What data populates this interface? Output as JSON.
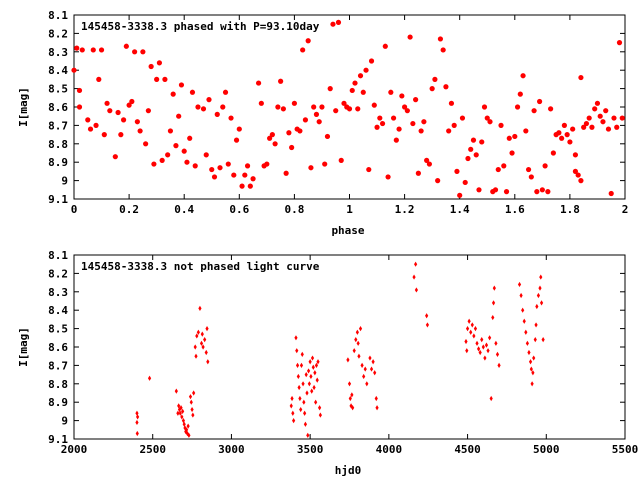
{
  "chart_data": [
    {
      "type": "scatter",
      "title": "145458-3338.3 phased with P=93.10day",
      "xlabel": "phase",
      "ylabel": "I[mag]",
      "xlim": [
        0,
        2
      ],
      "ylim": [
        9.1,
        8.1
      ],
      "y_inverted": true,
      "xticks": [
        "0",
        "0.2",
        "0.4",
        "0.6",
        "0.8",
        "1",
        "1.2",
        "1.4",
        "1.6",
        "1.8",
        "2"
      ],
      "yticks": [
        "8.1",
        "8.2",
        "8.3",
        "8.4",
        "8.5",
        "8.6",
        "8.7",
        "8.8",
        "8.9",
        "9",
        "9.1"
      ],
      "marker_color": "#ff0000",
      "marker": "filled-circle",
      "grid": false,
      "points": [
        [
          0.0,
          8.4
        ],
        [
          0.01,
          8.28
        ],
        [
          0.02,
          8.51
        ],
        [
          0.02,
          8.6
        ],
        [
          0.03,
          8.29
        ],
        [
          0.05,
          8.67
        ],
        [
          0.06,
          8.72
        ],
        [
          0.07,
          8.29
        ],
        [
          0.08,
          8.7
        ],
        [
          0.09,
          8.45
        ],
        [
          0.1,
          8.29
        ],
        [
          0.11,
          8.75
        ],
        [
          0.12,
          8.58
        ],
        [
          0.13,
          8.62
        ],
        [
          0.15,
          8.87
        ],
        [
          0.16,
          8.63
        ],
        [
          0.17,
          8.75
        ],
        [
          0.18,
          8.67
        ],
        [
          0.19,
          8.27
        ],
        [
          0.2,
          8.59
        ],
        [
          0.21,
          8.57
        ],
        [
          0.22,
          8.3
        ],
        [
          0.23,
          8.68
        ],
        [
          0.24,
          8.73
        ],
        [
          0.25,
          8.3
        ],
        [
          0.26,
          8.8
        ],
        [
          0.27,
          8.62
        ],
        [
          0.28,
          8.38
        ],
        [
          0.29,
          8.91
        ],
        [
          0.3,
          8.45
        ],
        [
          0.31,
          8.36
        ],
        [
          0.32,
          8.89
        ],
        [
          0.33,
          8.45
        ],
        [
          0.34,
          8.86
        ],
        [
          0.35,
          8.73
        ],
        [
          0.36,
          8.53
        ],
        [
          0.37,
          8.81
        ],
        [
          0.38,
          8.65
        ],
        [
          0.39,
          8.48
        ],
        [
          0.4,
          8.84
        ],
        [
          0.41,
          8.9
        ],
        [
          0.42,
          8.77
        ],
        [
          0.43,
          8.52
        ],
        [
          0.44,
          8.92
        ],
        [
          0.45,
          8.6
        ],
        [
          0.47,
          8.61
        ],
        [
          0.48,
          8.86
        ],
        [
          0.49,
          8.56
        ],
        [
          0.5,
          8.94
        ],
        [
          0.51,
          8.98
        ],
        [
          0.52,
          8.64
        ],
        [
          0.53,
          8.93
        ],
        [
          0.54,
          8.6
        ],
        [
          0.55,
          8.52
        ],
        [
          0.56,
          8.91
        ],
        [
          0.57,
          8.66
        ],
        [
          0.58,
          8.97
        ],
        [
          0.59,
          8.78
        ],
        [
          0.6,
          8.72
        ],
        [
          0.61,
          9.03
        ],
        [
          0.62,
          8.97
        ],
        [
          0.63,
          8.92
        ],
        [
          0.64,
          9.03
        ],
        [
          0.65,
          8.99
        ],
        [
          0.67,
          8.47
        ],
        [
          0.68,
          8.58
        ],
        [
          0.69,
          8.92
        ],
        [
          0.7,
          8.91
        ],
        [
          0.71,
          8.77
        ],
        [
          0.72,
          8.75
        ],
        [
          0.73,
          8.8
        ],
        [
          0.74,
          8.6
        ],
        [
          0.75,
          8.46
        ],
        [
          0.76,
          8.61
        ],
        [
          0.77,
          8.96
        ],
        [
          0.78,
          8.74
        ],
        [
          0.79,
          8.82
        ],
        [
          0.8,
          8.58
        ],
        [
          0.81,
          8.72
        ],
        [
          0.82,
          8.73
        ],
        [
          0.83,
          8.29
        ],
        [
          0.84,
          8.67
        ],
        [
          0.85,
          8.24
        ],
        [
          0.86,
          8.93
        ],
        [
          0.87,
          8.6
        ],
        [
          0.88,
          8.64
        ],
        [
          0.89,
          8.68
        ],
        [
          0.9,
          8.6
        ],
        [
          0.91,
          8.91
        ],
        [
          0.92,
          8.76
        ],
        [
          0.93,
          8.5
        ],
        [
          0.94,
          8.15
        ],
        [
          0.95,
          8.62
        ],
        [
          0.96,
          8.14
        ],
        [
          0.97,
          8.89
        ],
        [
          0.98,
          8.58
        ],
        [
          0.99,
          8.6
        ],
        [
          1.0,
          8.61
        ],
        [
          1.01,
          8.51
        ],
        [
          1.02,
          8.47
        ],
        [
          1.03,
          8.61
        ],
        [
          1.04,
          8.43
        ],
        [
          1.05,
          8.52
        ],
        [
          1.06,
          8.4
        ],
        [
          1.07,
          8.94
        ],
        [
          1.08,
          8.35
        ],
        [
          1.09,
          8.59
        ],
        [
          1.1,
          8.71
        ],
        [
          1.11,
          8.66
        ],
        [
          1.12,
          8.69
        ],
        [
          1.13,
          8.27
        ],
        [
          1.14,
          8.98
        ],
        [
          1.15,
          8.52
        ],
        [
          1.16,
          8.66
        ],
        [
          1.17,
          8.78
        ],
        [
          1.18,
          8.72
        ],
        [
          1.19,
          8.54
        ],
        [
          1.2,
          8.6
        ],
        [
          1.21,
          8.62
        ],
        [
          1.22,
          8.22
        ],
        [
          1.23,
          8.69
        ],
        [
          1.24,
          8.56
        ],
        [
          1.25,
          8.96
        ],
        [
          1.26,
          8.73
        ],
        [
          1.27,
          8.68
        ],
        [
          1.28,
          8.89
        ],
        [
          1.29,
          8.91
        ],
        [
          1.3,
          8.5
        ],
        [
          1.31,
          8.45
        ],
        [
          1.32,
          9.0
        ],
        [
          1.33,
          8.23
        ],
        [
          1.34,
          8.29
        ],
        [
          1.35,
          8.49
        ],
        [
          1.36,
          8.73
        ],
        [
          1.37,
          8.58
        ],
        [
          1.38,
          8.7
        ],
        [
          1.39,
          8.95
        ],
        [
          1.4,
          9.08
        ],
        [
          1.41,
          8.66
        ],
        [
          1.42,
          9.01
        ],
        [
          1.43,
          8.88
        ],
        [
          1.44,
          8.83
        ],
        [
          1.45,
          8.78
        ],
        [
          1.46,
          8.86
        ],
        [
          1.47,
          9.05
        ],
        [
          1.48,
          8.79
        ],
        [
          1.49,
          8.6
        ],
        [
          1.5,
          8.66
        ],
        [
          1.51,
          8.68
        ],
        [
          1.52,
          9.06
        ],
        [
          1.53,
          9.05
        ],
        [
          1.54,
          8.94
        ],
        [
          1.55,
          8.7
        ],
        [
          1.56,
          8.92
        ],
        [
          1.57,
          9.06
        ],
        [
          1.58,
          8.77
        ],
        [
          1.59,
          8.85
        ],
        [
          1.6,
          8.76
        ],
        [
          1.61,
          8.6
        ],
        [
          1.62,
          8.53
        ],
        [
          1.63,
          8.43
        ],
        [
          1.64,
          8.73
        ],
        [
          1.65,
          8.94
        ],
        [
          1.66,
          8.98
        ],
        [
          1.67,
          8.62
        ],
        [
          1.68,
          9.06
        ],
        [
          1.69,
          8.57
        ],
        [
          1.7,
          9.05
        ],
        [
          1.71,
          8.92
        ],
        [
          1.72,
          9.06
        ],
        [
          1.73,
          8.61
        ],
        [
          1.74,
          8.85
        ],
        [
          1.75,
          8.75
        ],
        [
          1.76,
          8.74
        ],
        [
          1.77,
          8.77
        ],
        [
          1.78,
          8.7
        ],
        [
          1.79,
          8.75
        ],
        [
          1.8,
          8.79
        ],
        [
          1.81,
          8.72
        ],
        [
          1.82,
          8.95
        ],
        [
          1.82,
          8.86
        ],
        [
          1.83,
          8.97
        ],
        [
          1.84,
          8.44
        ],
        [
          1.84,
          9.0
        ],
        [
          1.85,
          8.71
        ],
        [
          1.86,
          8.69
        ],
        [
          1.87,
          8.66
        ],
        [
          1.88,
          8.71
        ],
        [
          1.89,
          8.61
        ],
        [
          1.9,
          8.58
        ],
        [
          1.91,
          8.65
        ],
        [
          1.92,
          8.68
        ],
        [
          1.93,
          8.62
        ],
        [
          1.94,
          8.72
        ],
        [
          1.95,
          9.07
        ],
        [
          1.96,
          8.66
        ],
        [
          1.97,
          8.71
        ],
        [
          1.98,
          8.25
        ],
        [
          1.99,
          8.66
        ]
      ]
    },
    {
      "type": "scatter",
      "title": "145458-3338.3 not phased light curve",
      "xlabel": "hjd0",
      "ylabel": "I[mag]",
      "xlim": [
        2000,
        5500
      ],
      "ylim": [
        9.1,
        8.1
      ],
      "y_inverted": true,
      "xticks": [
        "2000",
        "2500",
        "3000",
        "3500",
        "4000",
        "4500",
        "5000",
        "5500"
      ],
      "yticks": [
        "8.1",
        "8.2",
        "8.3",
        "8.4",
        "8.5",
        "8.6",
        "8.7",
        "8.8",
        "8.9",
        "9",
        "9.1"
      ],
      "marker_color": "#ff0000",
      "marker": "filled-diamond",
      "grid": false,
      "points": [
        [
          2400,
          8.96
        ],
        [
          2400,
          9.01
        ],
        [
          2402,
          9.07
        ],
        [
          2404,
          8.98
        ],
        [
          2480,
          8.77
        ],
        [
          2650,
          8.84
        ],
        [
          2660,
          8.96
        ],
        [
          2665,
          8.92
        ],
        [
          2670,
          8.94
        ],
        [
          2675,
          8.96
        ],
        [
          2680,
          8.93
        ],
        [
          2685,
          8.98
        ],
        [
          2690,
          8.95
        ],
        [
          2695,
          9.0
        ],
        [
          2700,
          9.02
        ],
        [
          2705,
          9.04
        ],
        [
          2710,
          9.06
        ],
        [
          2715,
          9.05
        ],
        [
          2720,
          9.07
        ],
        [
          2725,
          9.03
        ],
        [
          2730,
          9.08
        ],
        [
          2740,
          8.87
        ],
        [
          2745,
          8.9
        ],
        [
          2750,
          8.94
        ],
        [
          2755,
          8.97
        ],
        [
          2760,
          8.85
        ],
        [
          2770,
          8.6
        ],
        [
          2775,
          8.65
        ],
        [
          2780,
          8.54
        ],
        [
          2790,
          8.52
        ],
        [
          2800,
          8.39
        ],
        [
          2810,
          8.58
        ],
        [
          2815,
          8.53
        ],
        [
          2820,
          8.6
        ],
        [
          2830,
          8.56
        ],
        [
          2840,
          8.63
        ],
        [
          2845,
          8.5
        ],
        [
          2850,
          8.68
        ],
        [
          3380,
          8.92
        ],
        [
          3385,
          8.88
        ],
        [
          3390,
          8.96
        ],
        [
          3395,
          9.0
        ],
        [
          3410,
          8.55
        ],
        [
          3415,
          8.62
        ],
        [
          3420,
          8.7
        ],
        [
          3425,
          8.76
        ],
        [
          3430,
          8.82
        ],
        [
          3435,
          8.88
        ],
        [
          3440,
          8.94
        ],
        [
          3445,
          8.7
        ],
        [
          3450,
          8.64
        ],
        [
          3455,
          8.8
        ],
        [
          3460,
          8.9
        ],
        [
          3465,
          8.96
        ],
        [
          3470,
          9.02
        ],
        [
          3475,
          8.75
        ],
        [
          3480,
          8.85
        ],
        [
          3485,
          9.08
        ],
        [
          3490,
          8.73
        ],
        [
          3495,
          8.8
        ],
        [
          3500,
          8.68
        ],
        [
          3505,
          8.76
        ],
        [
          3510,
          8.84
        ],
        [
          3515,
          8.66
        ],
        [
          3520,
          8.71
        ],
        [
          3525,
          8.82
        ],
        [
          3530,
          8.74
        ],
        [
          3535,
          8.9
        ],
        [
          3540,
          8.7
        ],
        [
          3545,
          8.78
        ],
        [
          3550,
          8.68
        ],
        [
          3560,
          8.93
        ],
        [
          3565,
          8.97
        ],
        [
          3740,
          8.67
        ],
        [
          3750,
          8.8
        ],
        [
          3755,
          8.88
        ],
        [
          3760,
          8.92
        ],
        [
          3765,
          8.86
        ],
        [
          3770,
          8.93
        ],
        [
          3780,
          8.62
        ],
        [
          3790,
          8.56
        ],
        [
          3800,
          8.52
        ],
        [
          3805,
          8.58
        ],
        [
          3810,
          8.65
        ],
        [
          3820,
          8.5
        ],
        [
          3830,
          8.7
        ],
        [
          3840,
          8.76
        ],
        [
          3850,
          8.72
        ],
        [
          3860,
          8.8
        ],
        [
          3880,
          8.66
        ],
        [
          3890,
          8.72
        ],
        [
          3900,
          8.68
        ],
        [
          3910,
          8.74
        ],
        [
          3920,
          8.88
        ],
        [
          3925,
          8.93
        ],
        [
          4160,
          8.22
        ],
        [
          4170,
          8.15
        ],
        [
          4175,
          8.29
        ],
        [
          4240,
          8.43
        ],
        [
          4245,
          8.48
        ],
        [
          4490,
          8.57
        ],
        [
          4495,
          8.62
        ],
        [
          4500,
          8.5
        ],
        [
          4510,
          8.46
        ],
        [
          4520,
          8.52
        ],
        [
          4530,
          8.48
        ],
        [
          4540,
          8.54
        ],
        [
          4550,
          8.5
        ],
        [
          4560,
          8.58
        ],
        [
          4570,
          8.61
        ],
        [
          4580,
          8.63
        ],
        [
          4590,
          8.56
        ],
        [
          4600,
          8.6
        ],
        [
          4610,
          8.66
        ],
        [
          4620,
          8.59
        ],
        [
          4630,
          8.62
        ],
        [
          4640,
          8.55
        ],
        [
          4650,
          8.88
        ],
        [
          4660,
          8.44
        ],
        [
          4665,
          8.36
        ],
        [
          4670,
          8.28
        ],
        [
          4680,
          8.58
        ],
        [
          4690,
          8.64
        ],
        [
          4700,
          8.7
        ],
        [
          4830,
          8.26
        ],
        [
          4840,
          8.32
        ],
        [
          4850,
          8.4
        ],
        [
          4860,
          8.46
        ],
        [
          4870,
          8.52
        ],
        [
          4880,
          8.58
        ],
        [
          4890,
          8.63
        ],
        [
          4900,
          8.68
        ],
        [
          4905,
          8.72
        ],
        [
          4910,
          8.8
        ],
        [
          4915,
          8.74
        ],
        [
          4920,
          8.66
        ],
        [
          4930,
          8.56
        ],
        [
          4935,
          8.48
        ],
        [
          4940,
          8.38
        ],
        [
          4950,
          8.32
        ],
        [
          4960,
          8.28
        ],
        [
          4965,
          8.22
        ],
        [
          4970,
          8.36
        ],
        [
          4980,
          8.56
        ]
      ]
    }
  ]
}
